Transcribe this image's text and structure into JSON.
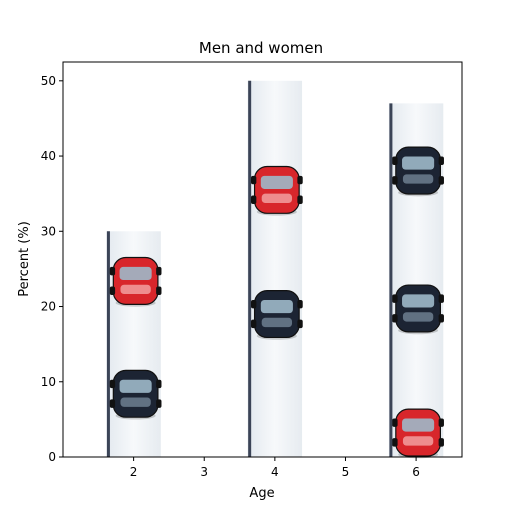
{
  "chart_data": {
    "type": "bar",
    "title": "Men and women",
    "xlabel": "Age",
    "ylabel": "Percent (%)",
    "x": [
      2,
      4,
      6
    ],
    "values": [
      30,
      50,
      47
    ],
    "xlim": [
      1.0,
      6.65
    ],
    "ylim": [
      0,
      52.5
    ],
    "xticks": [
      2,
      3,
      4,
      5,
      6
    ],
    "yticks": [
      0,
      10,
      20,
      30,
      40,
      50
    ],
    "grid": false,
    "bar_fill": "car-pictogram-image",
    "colors": {
      "car_red": "#d8262b",
      "car_dark": "#1c2433",
      "glass": "#9fb9c9",
      "bar_bg": "#eef2f6"
    }
  }
}
